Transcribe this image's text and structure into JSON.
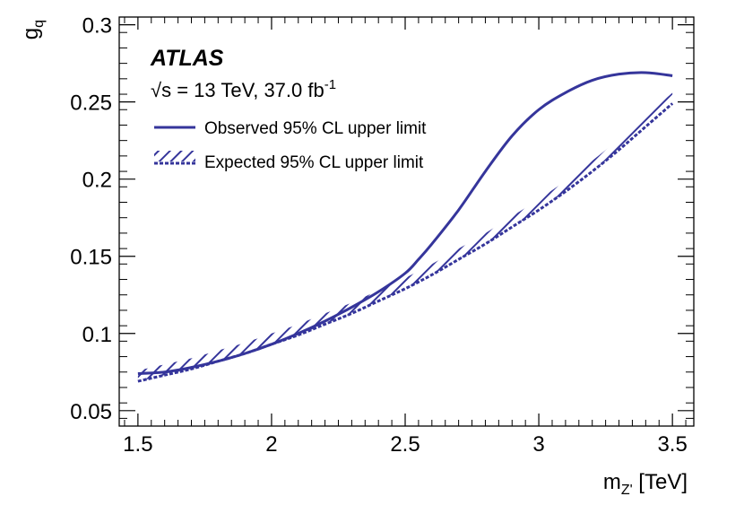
{
  "chart_data": {
    "type": "line",
    "title": "",
    "experiment": "ATLAS",
    "energy_label": {
      "sqrt": "√",
      "s_var": "s",
      "rest": " = 13 TeV, 37.0 fb",
      "exponent": "-1"
    },
    "xlabel": {
      "main": "m",
      "sub": "Z'",
      "unit": " [TeV]"
    },
    "ylabel": {
      "main": "g",
      "sub": "q"
    },
    "xlim": [
      1.43,
      3.58
    ],
    "ylim": [
      0.04,
      0.305
    ],
    "xticks": [
      1.5,
      2,
      2.5,
      3,
      3.5
    ],
    "xtick_labels": [
      "1.5",
      "2",
      "2.5",
      "3",
      "3.5"
    ],
    "yticks": [
      0.05,
      0.1,
      0.15,
      0.2,
      0.25,
      0.3
    ],
    "ytick_labels": [
      "0.05",
      "0.1",
      "0.15",
      "0.2",
      "0.25",
      "0.3"
    ],
    "series": [
      {
        "name": "Observed 95% CL upper limit",
        "style": "solid",
        "color": "#35359b",
        "x": [
          1.5,
          1.6,
          1.7,
          1.8,
          1.9,
          2.0,
          2.1,
          2.2,
          2.3,
          2.4,
          2.5,
          2.55,
          2.6,
          2.7,
          2.8,
          2.9,
          3.0,
          3.1,
          3.2,
          3.3,
          3.4,
          3.5
        ],
        "y": [
          0.074,
          0.075,
          0.078,
          0.082,
          0.087,
          0.093,
          0.1,
          0.108,
          0.117,
          0.127,
          0.139,
          0.148,
          0.158,
          0.18,
          0.205,
          0.228,
          0.245,
          0.256,
          0.264,
          0.268,
          0.269,
          0.267
        ]
      },
      {
        "name": "Expected 95% CL upper limit",
        "style": "hatched",
        "color": "#35359b",
        "x": [
          1.5,
          1.6,
          1.7,
          1.8,
          1.9,
          2.0,
          2.1,
          2.2,
          2.3,
          2.4,
          2.5,
          2.6,
          2.7,
          2.8,
          2.9,
          3.0,
          3.1,
          3.2,
          3.3,
          3.4,
          3.5
        ],
        "y": [
          0.069,
          0.073,
          0.077,
          0.082,
          0.087,
          0.093,
          0.099,
          0.106,
          0.113,
          0.121,
          0.129,
          0.138,
          0.148,
          0.158,
          0.169,
          0.18,
          0.192,
          0.205,
          0.219,
          0.234,
          0.249
        ]
      }
    ],
    "legend_placement": "top-left",
    "grid": false
  }
}
